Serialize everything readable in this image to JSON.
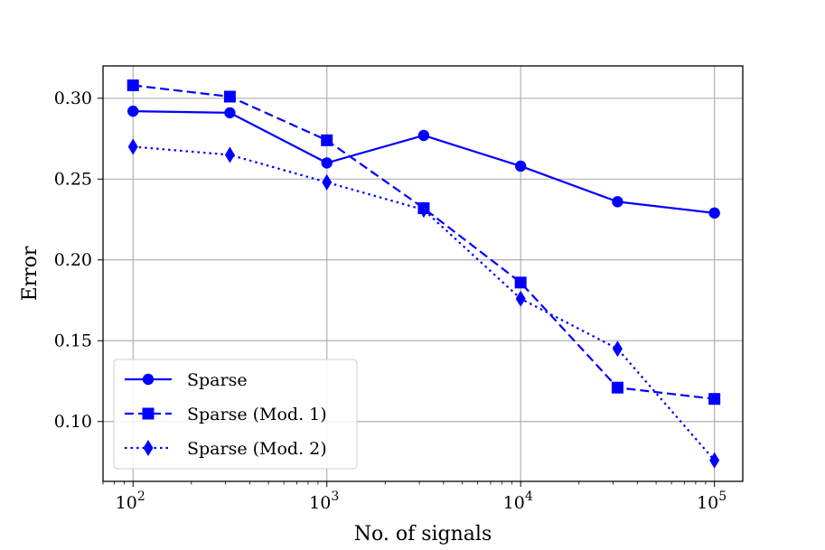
{
  "chart_data": {
    "type": "line",
    "xscale": "log",
    "xlim": [
      70,
      140000
    ],
    "ylim": [
      0.063,
      0.32
    ],
    "xlabel": "No. of signals",
    "ylabel": "Error",
    "grid": true,
    "legend_position": "bottom-left",
    "x_ticks": [
      {
        "value": 100,
        "base": "10",
        "exp": "2"
      },
      {
        "value": 1000,
        "base": "10",
        "exp": "3"
      },
      {
        "value": 10000,
        "base": "10",
        "exp": "4"
      },
      {
        "value": 100000,
        "base": "10",
        "exp": "5"
      }
    ],
    "y_ticks": [
      "0.10",
      "0.15",
      "0.20",
      "0.25",
      "0.30"
    ],
    "x": [
      100,
      316,
      1000,
      3162,
      10000,
      31623,
      100000
    ],
    "series": [
      {
        "name": "Sparse",
        "marker": "circle",
        "linestyle": "solid",
        "color": "#0000ff",
        "values": [
          0.292,
          0.291,
          0.26,
          0.277,
          0.258,
          0.236,
          0.229
        ]
      },
      {
        "name": "Sparse (Mod. 1)",
        "marker": "square",
        "linestyle": "dashed",
        "color": "#0000ff",
        "values": [
          0.308,
          0.301,
          0.274,
          0.232,
          0.186,
          0.121,
          0.114
        ]
      },
      {
        "name": "Sparse (Mod. 2)",
        "marker": "diamond",
        "linestyle": "dotted",
        "color": "#0000ff",
        "values": [
          0.27,
          0.265,
          0.248,
          0.231,
          0.176,
          0.145,
          0.076
        ]
      }
    ]
  }
}
